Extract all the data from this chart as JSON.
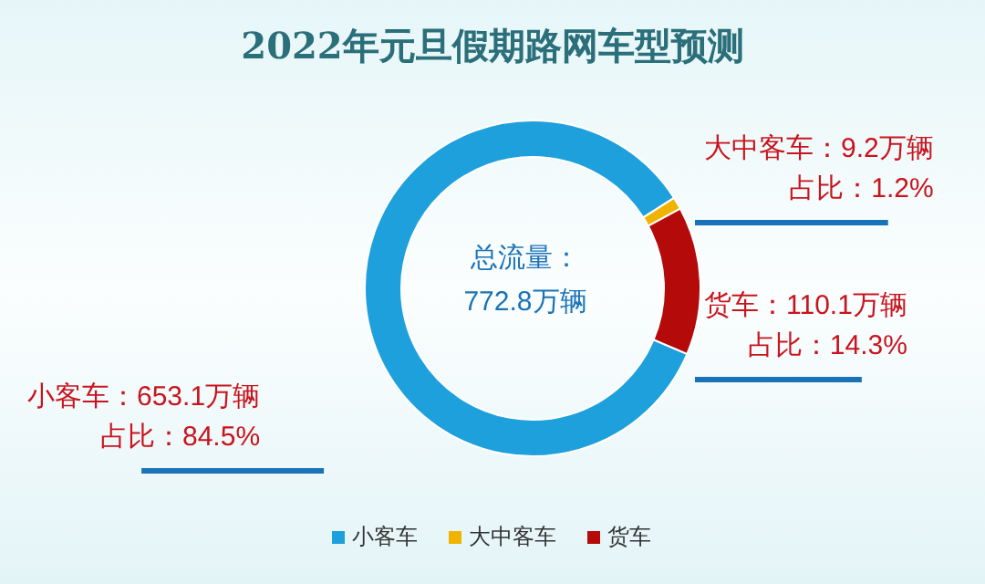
{
  "chart_data": {
    "type": "donut",
    "title": "2022年元旦假期路网车型预测",
    "categories": [
      "小客车",
      "大中客车",
      "货车"
    ],
    "values": [
      653.1,
      9.2,
      110.1
    ],
    "colors": [
      "#1ea0dc",
      "#f0b400",
      "#b40a0a"
    ],
    "value_labels": [
      "小客车：653.1万辆",
      "大中客车：9.2万辆",
      "货车：110.1万辆"
    ],
    "annotations": [
      "总流量：",
      "772.8万辆",
      {
        "text": "占比：84.5%",
        "x": "小客车"
      },
      {
        "text": "占比：1.2%",
        "x": "大中客车"
      },
      {
        "text": "占比：14.3%",
        "x": "货车"
      }
    ],
    "legend": "bottom"
  }
}
